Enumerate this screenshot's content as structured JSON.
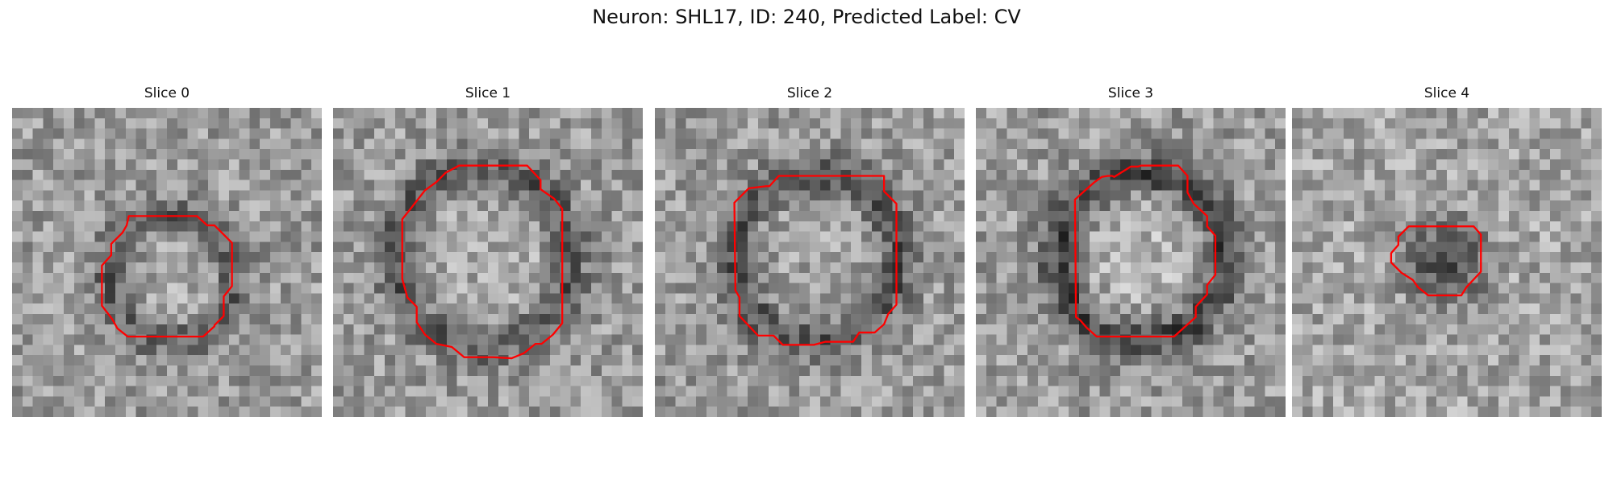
{
  "figure": {
    "title": "Neuron: SHL17, ID: 240, Predicted Label: CV"
  },
  "slices": [
    {
      "title": "Slice 0",
      "contour_color": "#ff0000"
    },
    {
      "title": "Slice 1",
      "contour_color": "#ff0000"
    },
    {
      "title": "Slice 2",
      "contour_color": "#ff0000"
    },
    {
      "title": "Slice 3",
      "contour_color": "#ff0000"
    },
    {
      "title": "Slice 4",
      "contour_color": "#ff0000"
    }
  ],
  "colors": {
    "contour": "#ff0000",
    "background": "#ffffff",
    "text": "#111111"
  }
}
